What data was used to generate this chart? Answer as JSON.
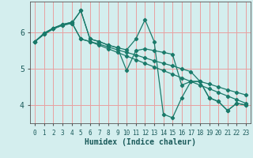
{
  "xlabel": "Humidex (Indice chaleur)",
  "xlim": [
    -0.5,
    23.5
  ],
  "ylim": [
    3.5,
    6.85
  ],
  "yticks": [
    4,
    5,
    6
  ],
  "xticks": [
    0,
    1,
    2,
    3,
    4,
    5,
    6,
    7,
    8,
    9,
    10,
    11,
    12,
    13,
    14,
    15,
    16,
    17,
    18,
    19,
    20,
    21,
    22,
    23
  ],
  "bg_color": "#d4eeee",
  "grid_color": "#e8a0a0",
  "line_color": "#1a7a6a",
  "lines": [
    [
      5.75,
      5.95,
      6.1,
      6.2,
      6.25,
      6.6,
      5.82,
      5.75,
      5.65,
      5.58,
      5.52,
      5.82,
      6.35,
      5.75,
      3.75,
      3.65,
      4.2,
      4.65,
      4.65,
      4.2,
      4.1,
      3.85,
      4.05,
      4.0
    ],
    [
      5.75,
      5.95,
      6.1,
      6.2,
      6.25,
      6.6,
      5.82,
      5.75,
      5.65,
      5.58,
      4.95,
      5.5,
      5.55,
      5.5,
      5.45,
      5.4,
      4.55,
      4.65,
      4.65,
      4.2,
      4.1,
      3.85,
      4.05,
      4.0
    ],
    [
      5.75,
      5.98,
      6.12,
      6.22,
      6.28,
      5.82,
      5.75,
      5.68,
      5.6,
      5.52,
      5.45,
      5.38,
      5.3,
      5.22,
      5.15,
      5.08,
      5.0,
      4.92,
      4.65,
      4.58,
      4.5,
      4.42,
      4.35,
      4.28
    ],
    [
      5.75,
      5.98,
      6.12,
      6.22,
      6.28,
      5.82,
      5.75,
      5.65,
      5.55,
      5.45,
      5.35,
      5.25,
      5.15,
      5.05,
      4.95,
      4.85,
      4.75,
      4.65,
      4.55,
      4.45,
      4.35,
      4.25,
      4.15,
      4.05
    ]
  ]
}
